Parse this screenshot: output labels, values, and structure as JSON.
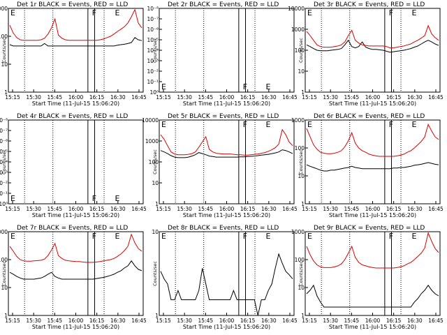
{
  "figure": {
    "colors": {
      "events": "#000000",
      "lld": "#e00000",
      "frame": "#000000"
    }
  },
  "chart_data": [
    {
      "type": "line",
      "title": "Det 1r BLACK = Events, RED = LLD",
      "ylabel": "Counts/sec",
      "xlabel": "Start Time (11-Jul-15 15:06:20)",
      "xticks": [
        "15:15",
        "15:30",
        "15:45",
        "16:00",
        "16:15",
        "16:30",
        "16:45"
      ],
      "yscale": "log",
      "yticks": [
        "1",
        "10",
        "100",
        "1000"
      ],
      "ylim": [
        1,
        1000
      ],
      "markers": [
        "E",
        "F",
        "E"
      ],
      "series": [
        {
          "name": "Events",
          "values": [
            50,
            45,
            45,
            45,
            45,
            45,
            45,
            45,
            45,
            45,
            55,
            45,
            45,
            45,
            45,
            45,
            45,
            45,
            45,
            45,
            45,
            45,
            45,
            45,
            45,
            45,
            45,
            45,
            45,
            45,
            45,
            48,
            50,
            52,
            55,
            60,
            90,
            75,
            70
          ]
        },
        {
          "name": "LLD",
          "values": [
            250,
            130,
            90,
            75,
            72,
            72,
            72,
            72,
            72,
            75,
            85,
            120,
            200,
            420,
            110,
            85,
            75,
            72,
            72,
            72,
            72,
            72,
            72,
            72,
            72,
            72,
            75,
            80,
            90,
            100,
            120,
            150,
            180,
            220,
            300,
            500,
            900,
            300,
            200
          ]
        }
      ]
    },
    {
      "type": "line",
      "title": "Det 2r BLACK = Events, RED = LLD",
      "ylabel": "Counts/sec",
      "xlabel": "Start Time (11-Jul-15 15:06:20)",
      "xticks": [
        "15:15",
        "15:30",
        "15:45",
        "16:00",
        "16:15",
        "16:30",
        "16:45"
      ],
      "yscale": "log",
      "yticks": [
        "10⁰",
        "10⁻¹",
        "10⁻²",
        "10⁻³",
        "10⁻⁴",
        "10⁻⁵",
        "10⁻⁶",
        "10⁻⁷",
        "10⁻⁸"
      ],
      "markers": [
        "E",
        "F",
        "E"
      ],
      "series": [
        {
          "name": "Events",
          "values": []
        },
        {
          "name": "LLD",
          "values": []
        }
      ]
    },
    {
      "type": "line",
      "title": "Det 3r BLACK = Events, RED = LLD",
      "ylabel": "Counts/sec",
      "xlabel": "Start Time (11-Jul-15 15:06:20)",
      "xticks": [
        "15:15",
        "15:30",
        "15:45",
        "16:00",
        "16:15",
        "16:30",
        "16:45"
      ],
      "yscale": "log",
      "yticks": [
        "1",
        "10",
        "100",
        "1000",
        "10000"
      ],
      "ylim": [
        1,
        10000
      ],
      "markers": [
        "E",
        "F",
        "E"
      ],
      "series": [
        {
          "name": "Events",
          "values": [
            180,
            150,
            120,
            100,
            95,
            95,
            95,
            100,
            105,
            110,
            120,
            180,
            300,
            150,
            130,
            150,
            250,
            140,
            120,
            110,
            110,
            105,
            100,
            90,
            80,
            85,
            90,
            95,
            100,
            110,
            120,
            140,
            160,
            200,
            250,
            300,
            250,
            200,
            170
          ]
        },
        {
          "name": "LLD",
          "values": [
            800,
            500,
            300,
            180,
            150,
            140,
            140,
            140,
            150,
            160,
            180,
            250,
            500,
            900,
            300,
            220,
            180,
            170,
            160,
            160,
            160,
            160,
            160,
            150,
            130,
            130,
            140,
            150,
            160,
            180,
            200,
            250,
            300,
            380,
            500,
            1500,
            600,
            400,
            300
          ]
        }
      ]
    },
    {
      "type": "line",
      "title": "Det 4r BLACK = Events, RED = LLD",
      "ylabel": "Counts/sec",
      "xlabel": "Start Time (11-Jul-15 15:06:20)",
      "xticks": [
        "15:15",
        "15:30",
        "15:45",
        "16:00",
        "16:15",
        "16:30",
        "16:45"
      ],
      "yscale": "log",
      "yticks": [
        "10⁰",
        "10⁻¹",
        "10⁻²",
        "10⁻³",
        "10⁻⁴",
        "10⁻⁵",
        "10⁻⁶",
        "10⁻⁷",
        "10⁻⁸"
      ],
      "markers": [
        "E",
        "F",
        "E"
      ],
      "series": [
        {
          "name": "Events",
          "values": []
        },
        {
          "name": "LLD",
          "values": []
        }
      ]
    },
    {
      "type": "line",
      "title": "Det 5r BLACK = Events, RED = LLD",
      "ylabel": "Counts/sec",
      "xlabel": "Start Time (11-Jul-15 15:06:20)",
      "xticks": [
        "15:15",
        "15:30",
        "15:45",
        "16:00",
        "16:15",
        "16:30",
        "16:45"
      ],
      "yscale": "log",
      "yticks": [
        "1",
        "10",
        "100",
        "1000",
        "10000"
      ],
      "ylim": [
        1,
        10000
      ],
      "markers": [
        "E",
        "F",
        "E"
      ],
      "series": [
        {
          "name": "Events",
          "values": [
            350,
            300,
            250,
            200,
            170,
            160,
            160,
            160,
            170,
            190,
            220,
            280,
            250,
            220,
            190,
            180,
            170,
            170,
            170,
            170,
            170,
            170,
            170,
            175,
            175,
            180,
            185,
            190,
            200,
            210,
            220,
            230,
            250,
            270,
            300,
            380,
            350,
            300,
            250
          ]
        },
        {
          "name": "LLD",
          "values": [
            2000,
            1200,
            600,
            300,
            240,
            220,
            220,
            220,
            230,
            250,
            300,
            500,
            900,
            1600,
            400,
            300,
            260,
            250,
            240,
            240,
            240,
            230,
            220,
            220,
            210,
            210,
            220,
            230,
            240,
            260,
            280,
            320,
            380,
            480,
            700,
            3500,
            2000,
            900,
            600
          ]
        }
      ]
    },
    {
      "type": "line",
      "title": "Det 6r BLACK = Events, RED = LLD",
      "ylabel": "Counts/sec",
      "xlabel": "Start Time (11-Jul-15 15:06:20)",
      "xticks": [
        "15:15",
        "15:30",
        "15:45",
        "16:00",
        "16:15",
        "16:30",
        "16:45"
      ],
      "yscale": "log",
      "yticks": [
        "1",
        "10",
        "100",
        "1000"
      ],
      "ylim": [
        1,
        1000
      ],
      "markers": [
        "E",
        "F",
        "E"
      ],
      "series": [
        {
          "name": "Events",
          "values": [
            25,
            22,
            20,
            18,
            16,
            15,
            15,
            16,
            16,
            17,
            18,
            19,
            20,
            22,
            20,
            19,
            18,
            18,
            18,
            18,
            18,
            18,
            18,
            18,
            18,
            19,
            19,
            20,
            20,
            21,
            22,
            24,
            25,
            26,
            28,
            30,
            28,
            26,
            25
          ]
        },
        {
          "name": "LLD",
          "values": [
            500,
            250,
            130,
            90,
            70,
            65,
            62,
            62,
            65,
            70,
            80,
            110,
            180,
            350,
            150,
            100,
            80,
            70,
            60,
            55,
            52,
            50,
            50,
            50,
            50,
            50,
            52,
            55,
            60,
            70,
            80,
            100,
            130,
            170,
            250,
            700,
            400,
            250,
            200
          ]
        }
      ]
    },
    {
      "type": "line",
      "title": "Det 7r BLACK = Events, RED = LLD",
      "ylabel": "Counts/sec",
      "xlabel": "Start Time (11-Jul-15 15:06:20)",
      "xticks": [
        "15:15",
        "15:30",
        "15:45",
        "16:00",
        "16:15",
        "16:30",
        "16:45"
      ],
      "yscale": "log",
      "yticks": [
        "1",
        "10",
        "100",
        "1000"
      ],
      "ylim": [
        1,
        1000
      ],
      "markers": [
        "E",
        "F",
        "E"
      ],
      "series": [
        {
          "name": "Events",
          "values": [
            35,
            30,
            25,
            22,
            20,
            20,
            20,
            20,
            21,
            22,
            25,
            30,
            35,
            25,
            22,
            20,
            20,
            20,
            20,
            20,
            20,
            20,
            20,
            20,
            20,
            21,
            22,
            23,
            25,
            27,
            30,
            35,
            40,
            50,
            60,
            90,
            60,
            45,
            40
          ]
        },
        {
          "name": "LLD",
          "values": [
            300,
            200,
            130,
            100,
            90,
            88,
            88,
            90,
            92,
            95,
            105,
            140,
            220,
            380,
            140,
            110,
            95,
            90,
            88,
            86,
            85,
            82,
            80,
            80,
            80,
            82,
            85,
            90,
            95,
            100,
            110,
            130,
            160,
            210,
            300,
            800,
            400,
            250,
            200
          ]
        }
      ]
    },
    {
      "type": "line",
      "title": "Det 8r BLACK = Events, RED = LLD",
      "ylabel": "Counts/sec",
      "xlabel": "Start Time (11-Jul-15 15:06:20)",
      "xticks": [
        "15:15",
        "15:30",
        "15:45",
        "16:00",
        "16:15",
        "16:30",
        "16:45"
      ],
      "yscale": "log",
      "yticks": [
        "1",
        "10"
      ],
      "ylim": [
        1,
        40
      ],
      "markers": [
        "E",
        "F",
        "E"
      ],
      "series": [
        {
          "name": "Events",
          "values": [
            7,
            5,
            4,
            2,
            2,
            3,
            2,
            2,
            2,
            2,
            2,
            3,
            8,
            4,
            2,
            2,
            2,
            2,
            2,
            2,
            2,
            3,
            2,
            2,
            2,
            2,
            2,
            2,
            1,
            2,
            2,
            3,
            4,
            8,
            15,
            10,
            7,
            6,
            5
          ]
        }
      ]
    },
    {
      "type": "line",
      "title": "Det 9r BLACK = Events, RED = LLD",
      "ylabel": "Counts/sec",
      "xlabel": "Start Time (11-Jul-15 15:06:20)",
      "xticks": [
        "15:15",
        "15:30",
        "15:45",
        "16:00",
        "16:15",
        "16:30",
        "16:45"
      ],
      "yscale": "log",
      "yticks": [
        "1",
        "10",
        "100",
        "1000"
      ],
      "ylim": [
        1,
        1000
      ],
      "markers": [
        "E",
        "F",
        "E"
      ],
      "series": [
        {
          "name": "Events",
          "values": [
            6,
            8,
            12,
            5,
            3,
            2,
            2,
            2,
            2,
            2,
            2,
            2,
            2,
            2,
            2,
            2,
            2,
            2,
            2,
            2,
            2,
            2,
            2,
            2,
            2,
            2,
            2,
            2,
            2,
            2,
            2,
            3,
            4,
            6,
            8,
            12,
            8,
            6,
            5
          ]
        },
        {
          "name": "LLD",
          "values": [
            300,
            150,
            90,
            65,
            55,
            52,
            52,
            52,
            55,
            60,
            70,
            100,
            170,
            300,
            120,
            80,
            65,
            60,
            55,
            52,
            50,
            50,
            50,
            50,
            50,
            50,
            52,
            55,
            60,
            70,
            80,
            100,
            130,
            170,
            260,
            900,
            450,
            250,
            180
          ]
        }
      ]
    }
  ]
}
